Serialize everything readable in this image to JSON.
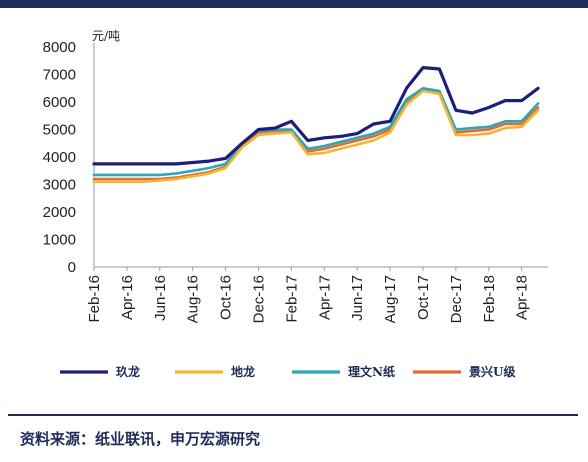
{
  "colors": {
    "frame": "#1f2c5a",
    "axis": "#9a9a9a"
  },
  "chart_data": {
    "type": "line",
    "title": "",
    "xlabel": "",
    "ylabel": "",
    "unit": "元/吨",
    "ylim": [
      0,
      8000
    ],
    "yticks": [
      "0",
      "1000",
      "2000",
      "3000",
      "4000",
      "5000",
      "6000",
      "7000",
      "8000"
    ],
    "xticks": [
      "Feb-16",
      "Apr-16",
      "Jun-16",
      "Aug-16",
      "Oct-16",
      "Dec-16",
      "Feb-17",
      "Apr-17",
      "Jun-17",
      "Aug-17",
      "Oct-17",
      "Dec-17",
      "Feb-18",
      "Apr-18"
    ],
    "x": [
      "2016-02",
      "2016-03",
      "2016-04",
      "2016-05",
      "2016-06",
      "2016-07",
      "2016-08",
      "2016-09",
      "2016-10",
      "2016-11",
      "2016-12",
      "2017-01",
      "2017-02",
      "2017-03",
      "2017-04",
      "2017-05",
      "2017-06",
      "2017-07",
      "2017-08",
      "2017-09",
      "2017-10",
      "2017-11",
      "2017-12",
      "2018-01",
      "2018-02",
      "2018-03",
      "2018-04",
      "2018-05"
    ],
    "legend_position": "bottom",
    "grid": false,
    "series": [
      {
        "name": "玖龙",
        "color": "#1b1f78",
        "values": [
          3750,
          3750,
          3750,
          3750,
          3750,
          3750,
          3800,
          3850,
          3950,
          4500,
          5000,
          5050,
          5300,
          4600,
          4700,
          4750,
          4850,
          5200,
          5300,
          6500,
          7250,
          7200,
          5700,
          5600,
          5800,
          6050,
          6050,
          6500
        ]
      },
      {
        "name": "地龙",
        "color": "#f2b632",
        "values": [
          3100,
          3100,
          3100,
          3100,
          3150,
          3200,
          3300,
          3400,
          3600,
          4350,
          4800,
          4850,
          4900,
          4100,
          4150,
          4300,
          4450,
          4600,
          4900,
          5900,
          6400,
          6300,
          4800,
          4800,
          4850,
          5050,
          5100,
          5700
        ]
      },
      {
        "name": "理文N纸",
        "color": "#2fa6b6",
        "values": [
          3350,
          3350,
          3350,
          3350,
          3350,
          3400,
          3500,
          3600,
          3750,
          4500,
          4950,
          5000,
          5000,
          4300,
          4400,
          4550,
          4700,
          4850,
          5100,
          6100,
          6500,
          6400,
          5000,
          5050,
          5100,
          5300,
          5300,
          5950
        ]
      },
      {
        "name": "景兴U级",
        "color": "#e36a32",
        "values": [
          3200,
          3200,
          3200,
          3200,
          3200,
          3250,
          3350,
          3450,
          3650,
          4400,
          4900,
          4950,
          4950,
          4200,
          4300,
          4450,
          4600,
          4750,
          5000,
          6000,
          6450,
          6350,
          4900,
          4950,
          5000,
          5200,
          5200,
          5800
        ]
      }
    ]
  },
  "source_text": "资料来源：纸业联讯，申万宏源研究"
}
